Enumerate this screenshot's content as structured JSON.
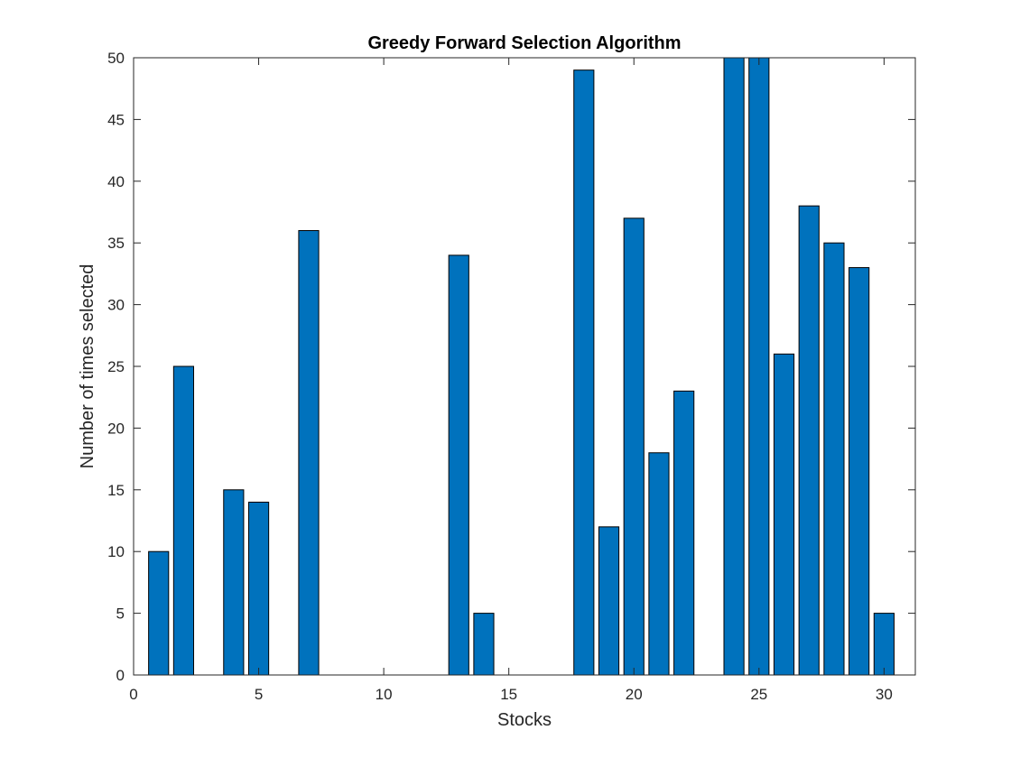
{
  "chart_data": {
    "type": "bar",
    "title": "Greedy Forward Selection Algorithm",
    "xlabel": "Stocks",
    "ylabel": "Number of times selected",
    "x": [
      1,
      2,
      3,
      4,
      5,
      6,
      7,
      8,
      9,
      10,
      11,
      12,
      13,
      14,
      15,
      16,
      17,
      18,
      19,
      20,
      21,
      22,
      23,
      24,
      25,
      26,
      27,
      28,
      29,
      30
    ],
    "values": [
      10,
      25,
      0,
      15,
      14,
      0,
      36,
      0,
      0,
      0,
      0,
      0,
      34,
      5,
      0,
      0,
      0,
      49,
      12,
      37,
      18,
      23,
      0,
      50,
      50,
      26,
      38,
      35,
      33,
      5
    ],
    "xlim": [
      0,
      31.25
    ],
    "ylim": [
      0,
      50
    ],
    "xticks": [
      0,
      5,
      10,
      15,
      20,
      25,
      30
    ],
    "yticks": [
      0,
      5,
      10,
      15,
      20,
      25,
      30,
      35,
      40,
      45,
      50
    ],
    "bar_color": "#0072BD",
    "grid": false,
    "legend": "none"
  }
}
